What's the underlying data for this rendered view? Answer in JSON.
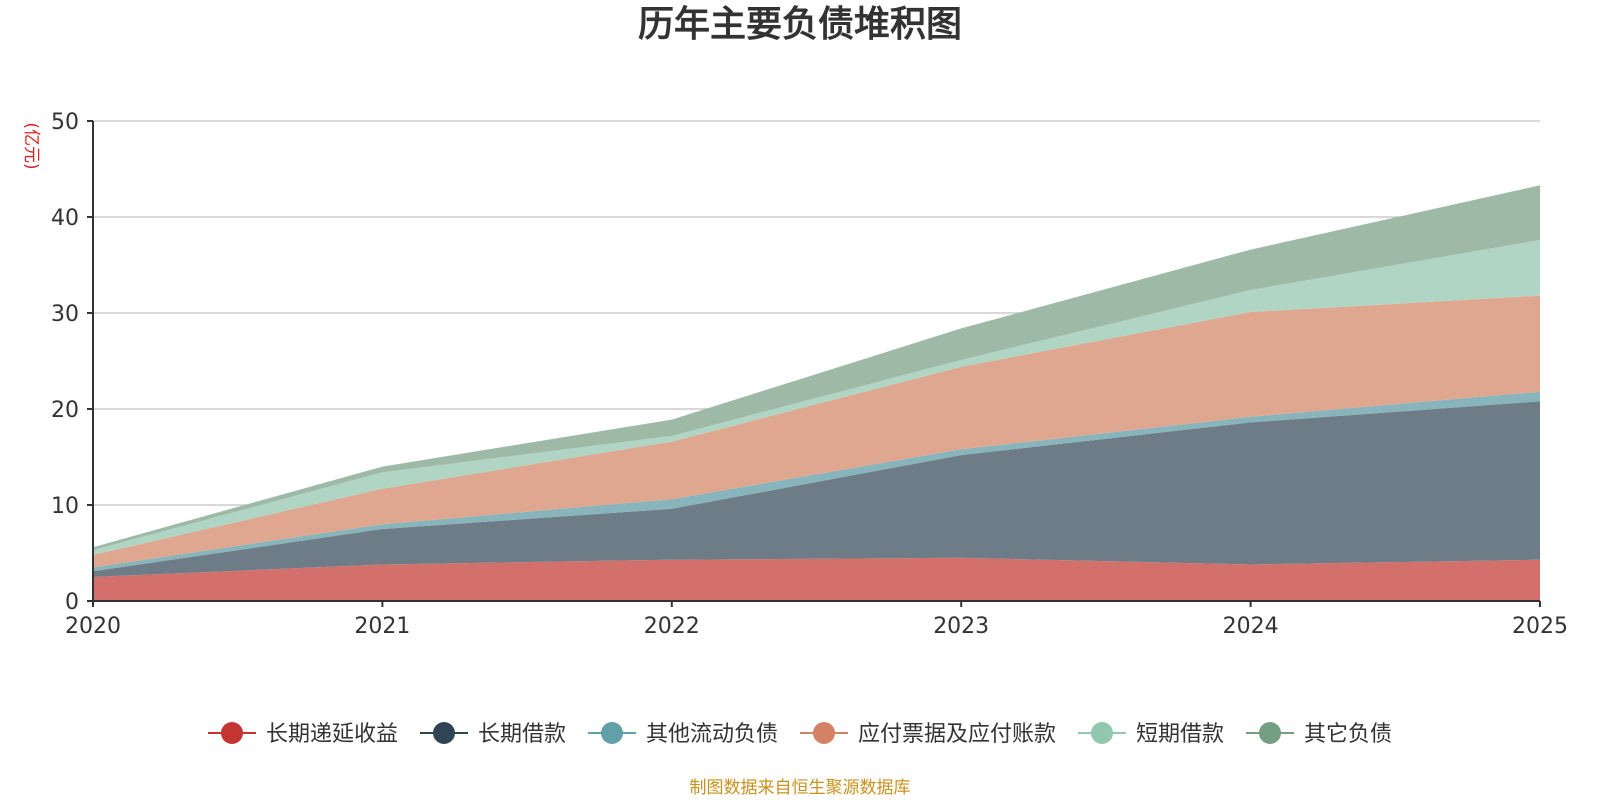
{
  "chart_data": {
    "type": "area",
    "stacked": true,
    "title": "历年主要负债堆积图",
    "ylabel": "(亿元)",
    "xlabel": "",
    "x": [
      "2020",
      "2021",
      "2022",
      "2023",
      "2024",
      "2025"
    ],
    "ylim": [
      0,
      50
    ],
    "yticks": [
      0,
      10,
      20,
      30,
      40,
      50
    ],
    "grid": true,
    "legend_position": "bottom",
    "series": [
      {
        "name": "长期递延收益",
        "color": "#c23531",
        "fill": "#d4706b",
        "values": [
          2.5,
          3.8,
          4.3,
          4.5,
          3.8,
          4.3
        ]
      },
      {
        "name": "长期借款",
        "color": "#2f4554",
        "fill": "#6e7c87",
        "values": [
          0.6,
          3.7,
          5.3,
          10.7,
          14.8,
          16.5
        ]
      },
      {
        "name": "其他流动负债",
        "color": "#61a0a8",
        "fill": "#88b5bb",
        "values": [
          0.4,
          0.5,
          1.0,
          0.6,
          0.6,
          1.0
        ]
      },
      {
        "name": "应付票据及应付账款",
        "color": "#d48265",
        "fill": "#dfa690",
        "values": [
          1.3,
          3.7,
          6.0,
          8.6,
          10.9,
          10.0
        ]
      },
      {
        "name": "短期借款",
        "color": "#91c7ae",
        "fill": "#b0d5c4",
        "values": [
          0.5,
          1.7,
          0.6,
          0.7,
          2.3,
          5.8
        ]
      },
      {
        "name": "其它负债",
        "color": "#749f83",
        "fill": "#9fb9a7",
        "values": [
          0.3,
          0.6,
          1.7,
          3.3,
          4.2,
          5.7
        ]
      }
    ],
    "source_note": "制图数据来自恒生聚源数据库"
  }
}
